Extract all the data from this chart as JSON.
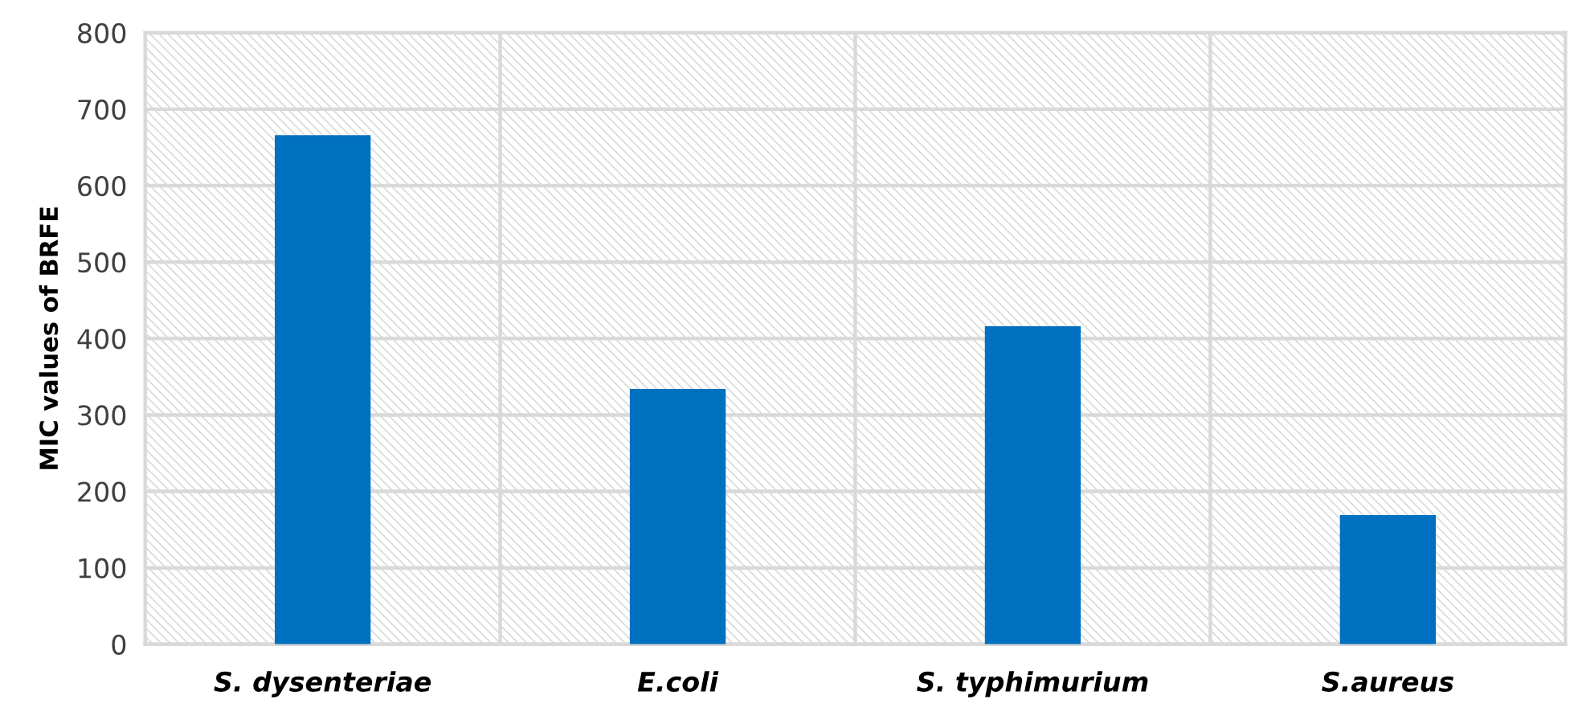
{
  "chart_data": {
    "type": "bar",
    "ylabel": "MIC values of BRFE",
    "categories": [
      "S. dysenteriae",
      "E.coli",
      "S. typhimurium",
      "S.aureus"
    ],
    "values": [
      666,
      334,
      416,
      169
    ],
    "color": "#0070c0",
    "ylim": [
      0,
      800
    ],
    "yticks": [
      0,
      100,
      200,
      300,
      400,
      500,
      600,
      700,
      800
    ],
    "grid": true,
    "legend": false
  }
}
